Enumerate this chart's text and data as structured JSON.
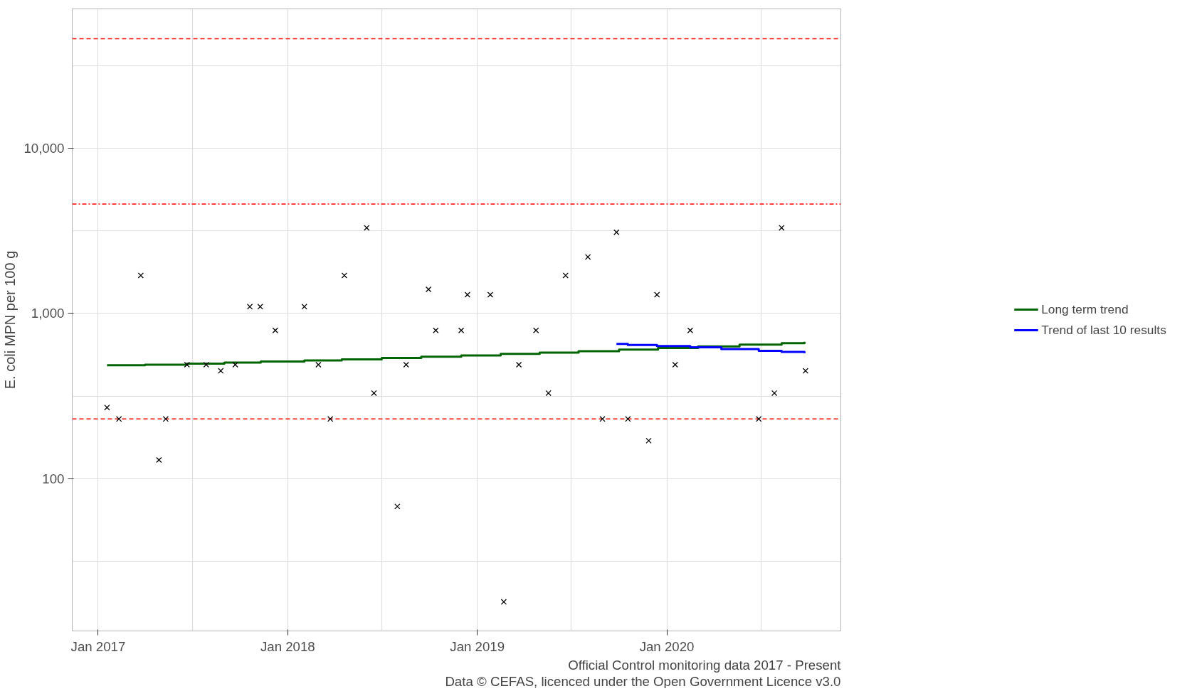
{
  "chart_data": {
    "type": "scatter",
    "ylabel": "E. coli MPN per 100 g",
    "log": "y",
    "grid": true,
    "legend": "right",
    "marker": "cross",
    "xlim": [
      "2016-11-12",
      "2020-12-01"
    ],
    "ylim": [
      12,
      69700
    ],
    "xticks": [
      {
        "value": "2017-01-01",
        "label": "Jan 2017"
      },
      {
        "value": "2017-07-01",
        "label": null
      },
      {
        "value": "2018-01-01",
        "label": "Jan 2018"
      },
      {
        "value": "2018-07-01",
        "label": null
      },
      {
        "value": "2019-01-01",
        "label": "Jan 2019"
      },
      {
        "value": "2019-07-01",
        "label": null
      },
      {
        "value": "2020-01-01",
        "label": "Jan 2020"
      },
      {
        "value": "2020-07-01",
        "label": null
      }
    ],
    "yticks": [
      {
        "value": 31.6,
        "label": null
      },
      {
        "value": 100,
        "label": "100"
      },
      {
        "value": 316,
        "label": null
      },
      {
        "value": 1000,
        "label": "1,000"
      },
      {
        "value": 3162,
        "label": null
      },
      {
        "value": 10000,
        "label": "10,000"
      },
      {
        "value": 31623,
        "label": null
      }
    ],
    "series": [
      {
        "color": "#000000",
        "x": [
          "2017-01-18",
          "2017-02-10",
          "2017-03-24",
          "2017-04-28",
          "2017-05-11",
          "2017-06-21",
          "2017-07-28",
          "2017-08-25",
          "2017-09-22",
          "2017-10-20",
          "2017-11-09",
          "2017-12-08",
          "2018-02-02",
          "2018-03-01",
          "2018-03-24",
          "2018-04-20",
          "2018-06-02",
          "2018-06-16",
          "2018-07-31",
          "2018-08-17",
          "2018-09-29",
          "2018-10-13",
          "2018-12-01",
          "2018-12-13",
          "2019-01-26",
          "2019-02-21",
          "2019-03-22",
          "2019-04-24",
          "2019-05-18",
          "2019-06-20",
          "2019-08-02",
          "2019-08-30",
          "2019-09-26",
          "2019-10-18",
          "2019-11-27",
          "2019-12-13",
          "2020-01-17",
          "2020-02-15",
          "2020-06-26",
          "2020-07-26",
          "2020-08-09",
          "2020-09-24"
        ],
        "values": [
          270,
          230,
          1700,
          130,
          230,
          490,
          490,
          450,
          490,
          1100,
          1100,
          790,
          1100,
          490,
          230,
          1700,
          3300,
          330,
          68,
          490,
          1400,
          790,
          790,
          1300,
          1300,
          18,
          490,
          790,
          330,
          1700,
          2200,
          230,
          3100,
          230,
          170,
          1300,
          490,
          790,
          230,
          330,
          3300,
          450
        ]
      },
      {
        "type": "step",
        "marker": "none",
        "name": "Long term trend",
        "color": "#006400",
        "x": [
          "2017-01-18",
          "2017-04-01",
          "2017-06-21",
          "2017-09-01",
          "2017-11-10",
          "2018-02-02",
          "2018-04-15",
          "2018-07-01",
          "2018-09-15",
          "2018-12-01",
          "2019-02-15",
          "2019-05-01",
          "2019-07-15",
          "2019-10-01",
          "2019-12-15",
          "2020-03-01",
          "2020-05-20",
          "2020-08-09",
          "2020-09-22"
        ],
        "values": [
          486,
          490,
          497,
          505,
          512,
          520,
          528,
          538,
          548,
          558,
          570,
          580,
          592,
          605,
          618,
          632,
          648,
          662,
          675
        ]
      },
      {
        "type": "step",
        "marker": "none",
        "name": "Trend of last 10 results",
        "color": "#0000ff",
        "x": [
          "2019-09-26",
          "2019-10-18",
          "2019-12-13",
          "2020-02-15",
          "2020-04-15",
          "2020-06-26",
          "2020-08-09",
          "2020-09-22"
        ],
        "values": [
          655,
          645,
          635,
          625,
          610,
          595,
          585,
          575
        ]
      }
    ],
    "ref_lines": [
      {
        "axis": "y",
        "value": 46000,
        "label": null,
        "color": "#ff0000",
        "line_style": "dashed"
      },
      {
        "axis": "y",
        "value": 4600,
        "label": null,
        "color": "#ff0000",
        "line_style": "dashdot"
      },
      {
        "axis": "y",
        "value": 230,
        "label": null,
        "color": "#ff0000",
        "line_style": "dashed"
      }
    ],
    "annotations": [
      "Official Control monitoring data 2017 - Present",
      "Data © CEFAS, licenced under the Open Government Licence v3.0"
    ]
  }
}
